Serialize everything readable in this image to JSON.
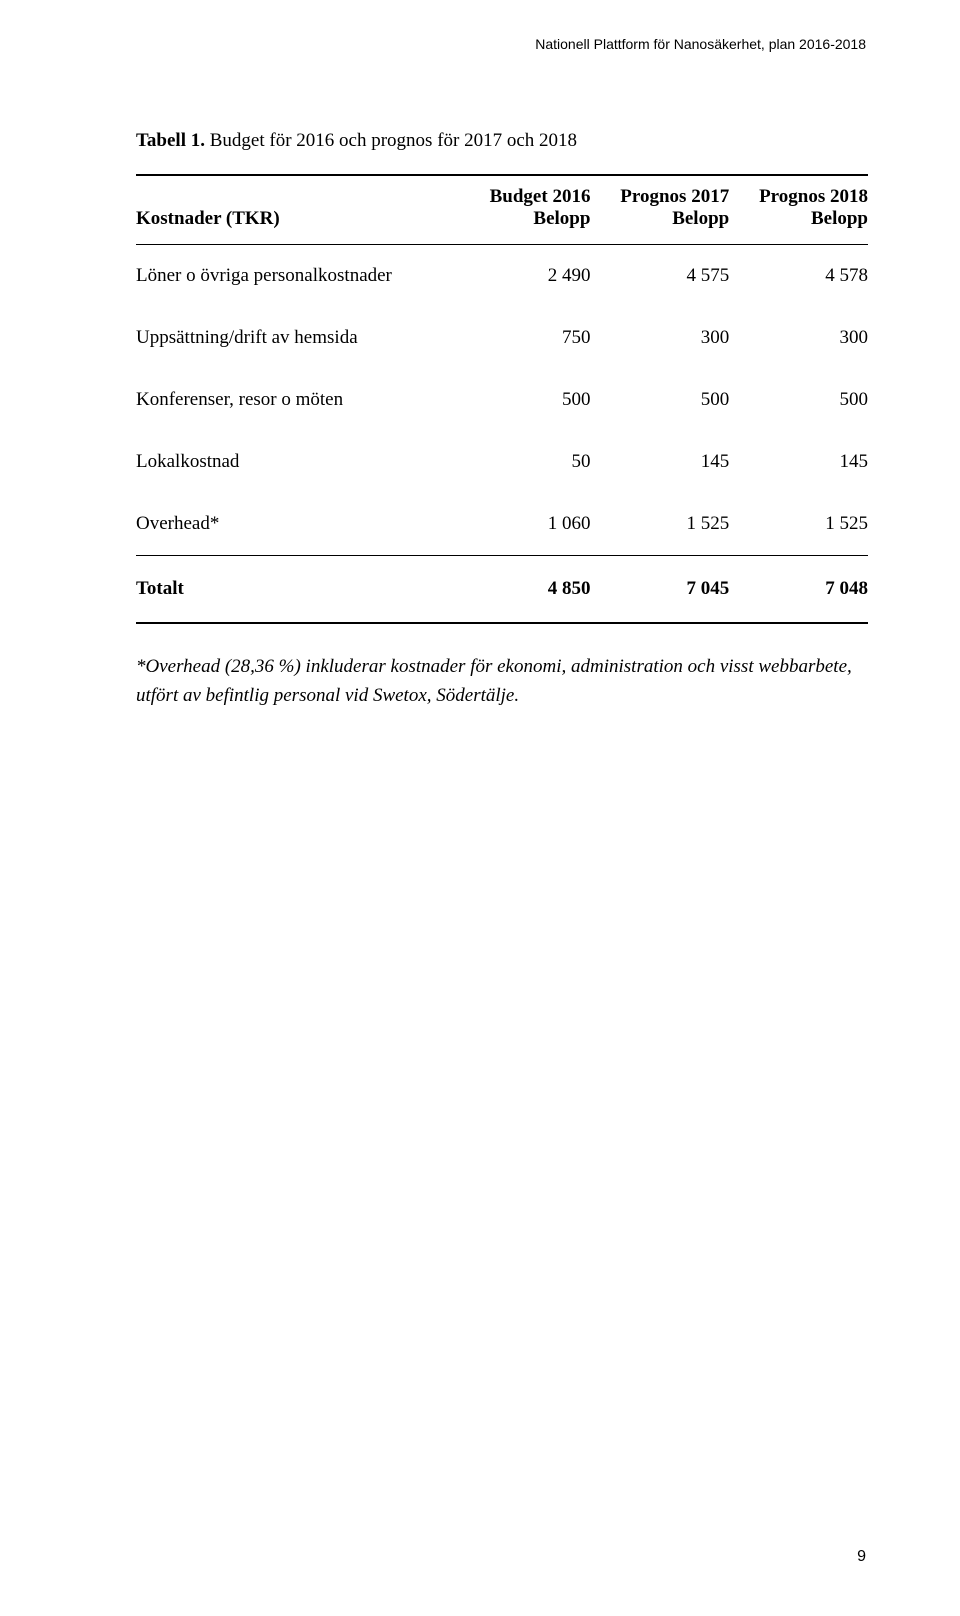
{
  "header": {
    "text": "Nationell Plattform för Nanosäkerhet, plan 2016-2018"
  },
  "caption": {
    "label": "Tabell 1.",
    "text": " Budget för 2016 och prognos för 2017 och 2018"
  },
  "table": {
    "type": "table",
    "columns": [
      {
        "line1": "",
        "line2": "Kostnader (TKR)",
        "align": "left"
      },
      {
        "line1": "Budget 2016",
        "line2": "Belopp",
        "align": "right"
      },
      {
        "line1": "Prognos 2017",
        "line2": "Belopp",
        "align": "right"
      },
      {
        "line1": "Prognos 2018",
        "line2": "Belopp",
        "align": "right"
      }
    ],
    "rows": [
      {
        "label": "Löner o övriga personalkostnader",
        "v1": "2 490",
        "v2": "4 575",
        "v3": "4 578"
      },
      {
        "label": "Uppsättning/drift av hemsida",
        "v1": "750",
        "v2": "300",
        "v3": "300"
      },
      {
        "label": "Konferenser, resor o möten",
        "v1": "500",
        "v2": "500",
        "v3": "500"
      },
      {
        "label": "Lokalkostnad",
        "v1": "50",
        "v2": "145",
        "v3": "145"
      },
      {
        "label": "Overhead*",
        "v1": "1 060",
        "v2": "1 525",
        "v3": "1 525"
      }
    ],
    "total": {
      "label": "Totalt",
      "v1": "4 850",
      "v2": "7 045",
      "v3": "7 048"
    }
  },
  "footnote": {
    "text": "*Overhead (28,36 %) inkluderar kostnader för ekonomi, administration och visst webbarbete, utfört av befintlig personal vid Swetox, Södertälje."
  },
  "page": {
    "num": "9"
  }
}
